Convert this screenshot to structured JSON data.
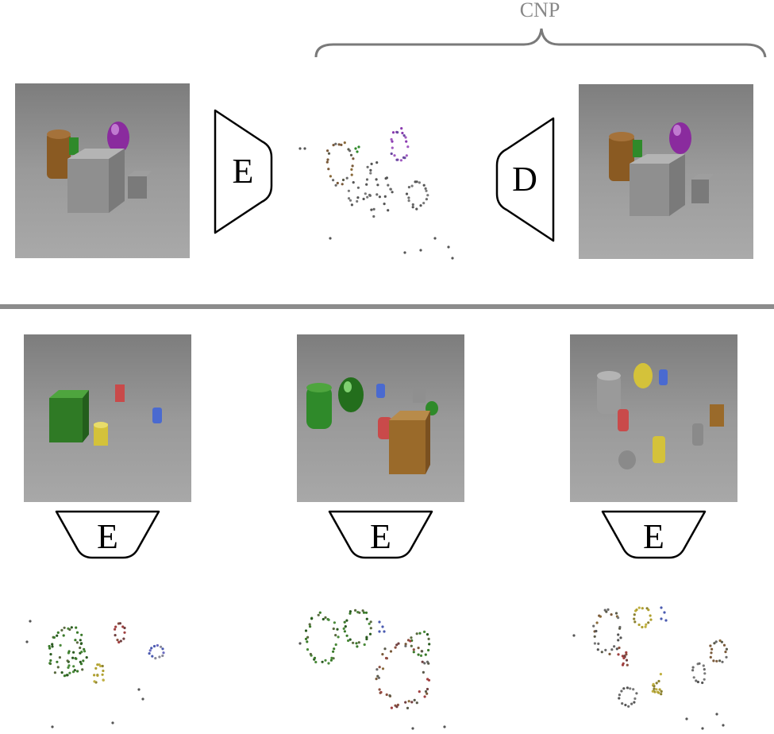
{
  "top": {
    "cnp_label": "CNP",
    "encoder_label": "E",
    "decoder_label": "D"
  },
  "bottom": {
    "encoders": [
      {
        "label": "E"
      },
      {
        "label": "E"
      },
      {
        "label": "E"
      }
    ]
  },
  "colors": {
    "divider": "#8c8c8c",
    "brace": "#7a7a7a",
    "cnp_text": "#888888",
    "render_bg": "#8a8a8a",
    "gray_object": "#8f8f8f",
    "purple_object": "#8a2b9e",
    "green_object": "#2f8a2a",
    "brown_object": "#8a5a22",
    "red_object": "#c94a4a",
    "blue_object": "#4a6ad0",
    "yellow_object": "#d4c23a",
    "gold_object": "#9a6a2a"
  },
  "icons": {
    "encoder": "trapezoid-encoder-icon",
    "decoder": "trapezoid-decoder-icon"
  }
}
